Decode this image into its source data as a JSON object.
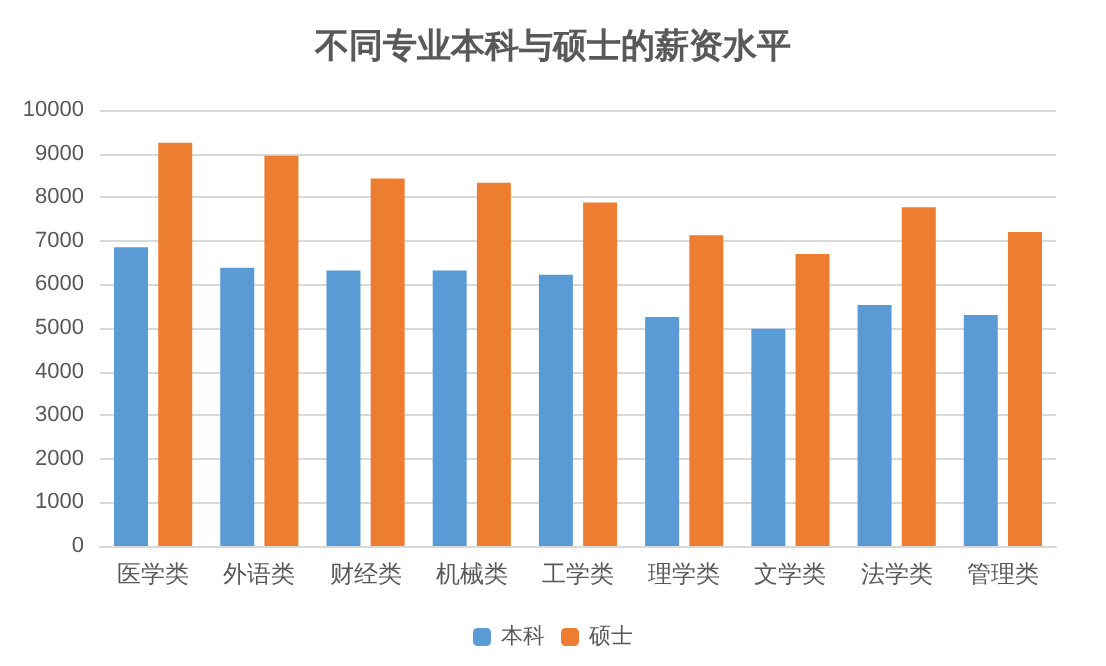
{
  "chart_data": {
    "type": "bar",
    "title": "不同专业本科与硕士的薪资水平",
    "categories": [
      "医学类",
      "外语类",
      "财经类",
      "机械类",
      "工学类",
      "理学类",
      "文学类",
      "法学类",
      "管理类"
    ],
    "series": [
      {
        "name": "本科",
        "color": "#5b9bd5",
        "values": [
          6850,
          6380,
          6320,
          6320,
          6220,
          5250,
          4980,
          5530,
          5300
        ]
      },
      {
        "name": "硕士",
        "color": "#ed7d31",
        "values": [
          9250,
          8950,
          8430,
          8330,
          7880,
          7130,
          6700,
          7770,
          7200
        ]
      }
    ],
    "ylim": [
      0,
      10000
    ],
    "yticks": [
      0,
      1000,
      2000,
      3000,
      4000,
      5000,
      6000,
      7000,
      8000,
      9000,
      10000
    ],
    "grid": "y",
    "legend": "bottom"
  }
}
